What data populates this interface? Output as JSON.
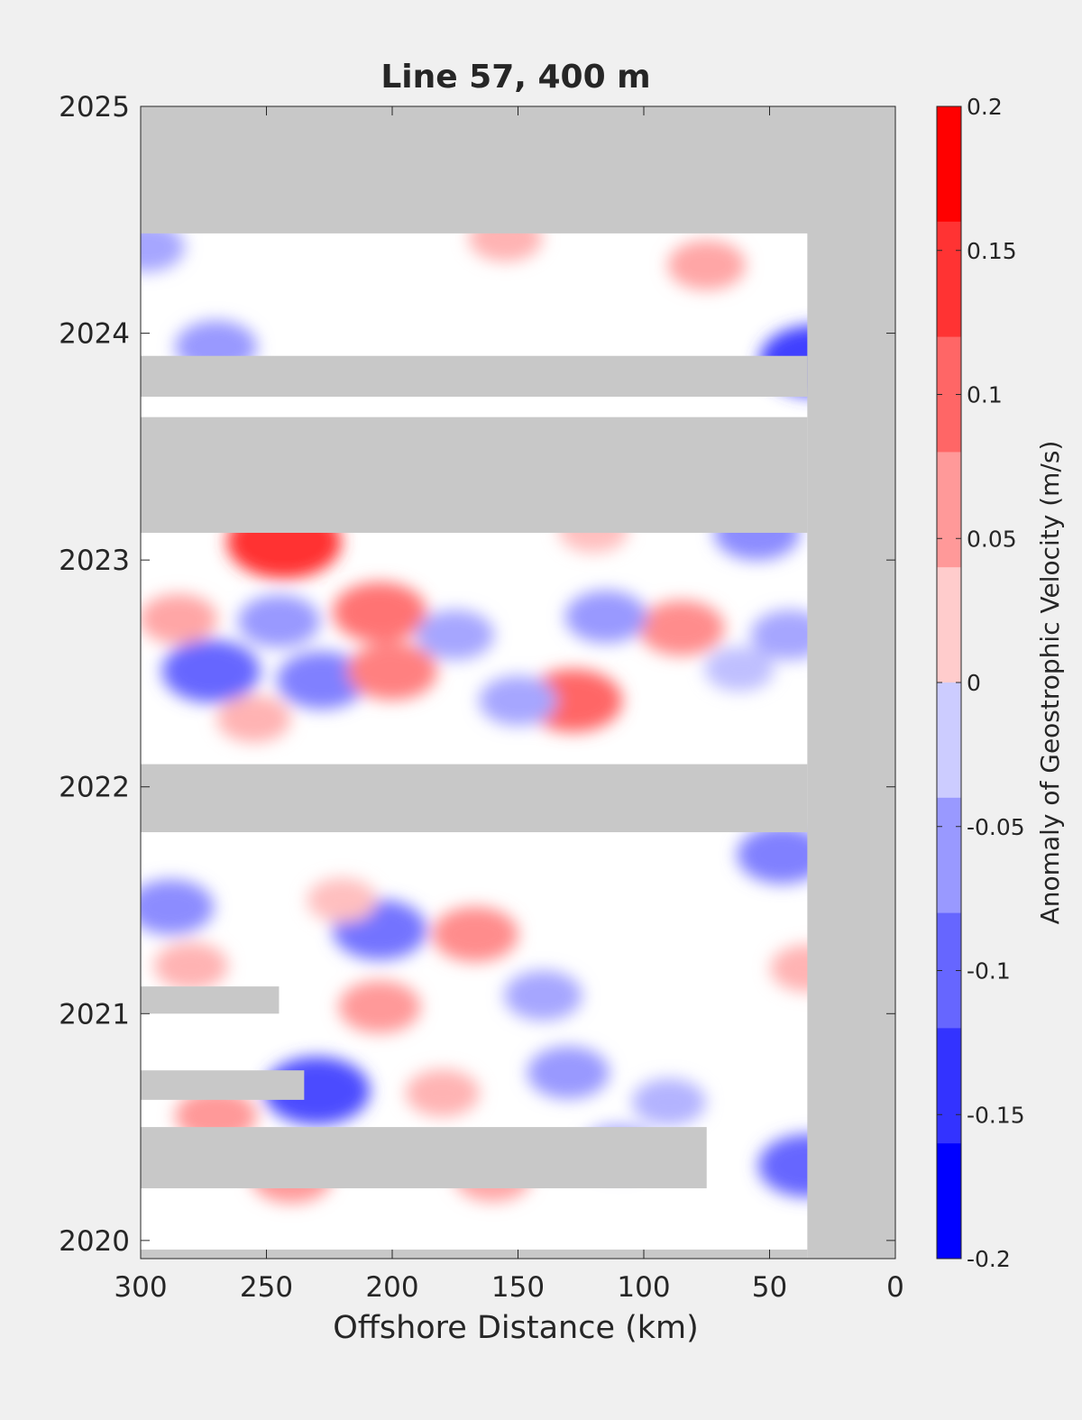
{
  "chart_data": {
    "type": "heatmap",
    "title": "Line 57, 400 m",
    "xlabel": "Offshore Distance (km)",
    "ylabel": "",
    "xlim": [
      300,
      0
    ],
    "x_reversed": true,
    "ylim": [
      2019.92,
      2025
    ],
    "x_ticks": [
      300,
      250,
      200,
      150,
      100,
      50,
      0
    ],
    "y_ticks": [
      2020,
      2021,
      2022,
      2023,
      2024,
      2025
    ],
    "colorbar": {
      "label": "Anomaly of Geostrophic Velocity (m/s)",
      "ticks": [
        0.2,
        0.15,
        0.1,
        0.05,
        0,
        -0.05,
        -0.1,
        -0.15,
        -0.2
      ],
      "tick_labels": [
        "0.2",
        "0.15",
        "0.1",
        "0.05",
        "0",
        "-0.05",
        "-0.1",
        "-0.15",
        "-0.2"
      ],
      "range": [
        -0.2,
        0.2
      ],
      "levels": 10,
      "colormap": "blue-white-red"
    },
    "no_data_color": "#c8c8c8",
    "no_data_regions": [
      {
        "x": [
          300,
          0
        ],
        "y": [
          2024.44,
          2025
        ]
      },
      {
        "x": [
          35,
          0
        ],
        "y": [
          2019.92,
          2025
        ]
      },
      {
        "x": [
          300,
          35
        ],
        "y": [
          2023.72,
          2023.9
        ]
      },
      {
        "x": [
          300,
          35
        ],
        "y": [
          2023.12,
          2023.63
        ]
      },
      {
        "x": [
          300,
          35
        ],
        "y": [
          2021.8,
          2022.1
        ]
      },
      {
        "x": [
          300,
          245
        ],
        "y": [
          2021.0,
          2021.12
        ]
      },
      {
        "x": [
          300,
          235
        ],
        "y": [
          2020.62,
          2020.75
        ]
      },
      {
        "x": [
          300,
          75
        ],
        "y": [
          2020.23,
          2020.5
        ]
      },
      {
        "x": [
          300,
          35
        ],
        "y": [
          2019.92,
          2019.96
        ]
      }
    ],
    "anomaly_cells": [
      {
        "x": 272,
        "y": 2022.51,
        "value": -0.12
      },
      {
        "x": 243,
        "y": 2023.08,
        "value": 0.16
      },
      {
        "x": 230,
        "y": 2020.66,
        "value": -0.14
      },
      {
        "x": 288,
        "y": 2021.47,
        "value": -0.09
      },
      {
        "x": 205,
        "y": 2021.37,
        "value": -0.11
      },
      {
        "x": 32,
        "y": 2023.88,
        "value": -0.15
      },
      {
        "x": 35,
        "y": 2020.33,
        "value": -0.12
      },
      {
        "x": 128,
        "y": 2022.38,
        "value": 0.12
      },
      {
        "x": 205,
        "y": 2022.77,
        "value": 0.11
      },
      {
        "x": 228,
        "y": 2022.47,
        "value": -0.1
      },
      {
        "x": 245,
        "y": 2022.73,
        "value": -0.08
      },
      {
        "x": 200,
        "y": 2022.51,
        "value": 0.1
      },
      {
        "x": 167,
        "y": 2021.35,
        "value": 0.09
      },
      {
        "x": 205,
        "y": 2021.03,
        "value": 0.08
      },
      {
        "x": 270,
        "y": 2020.55,
        "value": 0.08
      },
      {
        "x": 130,
        "y": 2020.74,
        "value": -0.08
      },
      {
        "x": 160,
        "y": 2020.28,
        "value": 0.07
      },
      {
        "x": 85,
        "y": 2022.7,
        "value": 0.09
      },
      {
        "x": 115,
        "y": 2022.75,
        "value": -0.08
      },
      {
        "x": 45,
        "y": 2021.7,
        "value": -0.1
      },
      {
        "x": 42,
        "y": 2022.67,
        "value": -0.07
      },
      {
        "x": 55,
        "y": 2023.12,
        "value": -0.09
      },
      {
        "x": 150,
        "y": 2022.38,
        "value": -0.07
      },
      {
        "x": 175,
        "y": 2022.67,
        "value": -0.07
      },
      {
        "x": 140,
        "y": 2021.08,
        "value": -0.07
      },
      {
        "x": 285,
        "y": 2022.74,
        "value": 0.07
      },
      {
        "x": 255,
        "y": 2022.3,
        "value": 0.06
      },
      {
        "x": 270,
        "y": 2023.94,
        "value": -0.08
      },
      {
        "x": 298,
        "y": 2024.38,
        "value": -0.07
      },
      {
        "x": 75,
        "y": 2024.3,
        "value": 0.07
      },
      {
        "x": 155,
        "y": 2024.42,
        "value": 0.06
      },
      {
        "x": 35,
        "y": 2021.2,
        "value": 0.06
      },
      {
        "x": 110,
        "y": 2020.4,
        "value": -0.07
      },
      {
        "x": 240,
        "y": 2020.28,
        "value": 0.08
      },
      {
        "x": 180,
        "y": 2020.65,
        "value": 0.06
      },
      {
        "x": 90,
        "y": 2020.61,
        "value": -0.06
      },
      {
        "x": 62,
        "y": 2022.52,
        "value": -0.05
      },
      {
        "x": 220,
        "y": 2021.5,
        "value": 0.05
      },
      {
        "x": 280,
        "y": 2021.21,
        "value": 0.06
      },
      {
        "x": 120,
        "y": 2023.13,
        "value": 0.05
      }
    ]
  }
}
